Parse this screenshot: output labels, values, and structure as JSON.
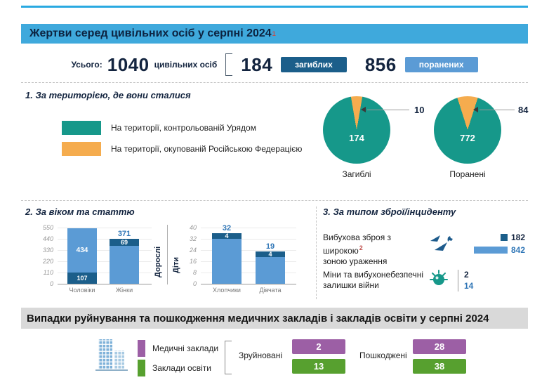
{
  "colors": {
    "header_blue": "#3FA9DC",
    "top_rule_blue": "#29A9E1",
    "killed_dark_blue": "#1B5E8A",
    "injured_light_blue": "#5B9BD5",
    "injured_text_blue": "#2E75B6",
    "government_teal": "#16988A",
    "occupied_orange": "#F5AC4E",
    "medical_purple": "#9C5FA5",
    "education_green": "#57A02F",
    "grey_bar": "#D9D9D9"
  },
  "header": {
    "title": "Жертви серед цивільних осіб у серпні 2024",
    "footnote_mark": "1"
  },
  "summary": {
    "total_label": "Усього:",
    "total_value": "1040",
    "total_unit": "цивільних осіб",
    "killed_value": "184",
    "killed_badge": "загиблих",
    "injured_value": "856",
    "injured_badge": "поранених"
  },
  "section_territory": {
    "title": "1. За територією, де вони сталися",
    "legend": [
      {
        "label": "На території, контрольованій Урядом",
        "color": "#16988A"
      },
      {
        "label": "На території, окупованій Російською Федерацією",
        "color": "#F5AC4E"
      }
    ]
  },
  "section_age": {
    "title": "2. За віком та статтю"
  },
  "section_weapons": {
    "title": "3. За типом зброї/інциденту",
    "rows": [
      {
        "line1": "Вибухова зброя з широкою",
        "line2": "зоною ураження",
        "footnote_mark": "2"
      },
      {
        "line1": "Міни та вибухонебезпечні",
        "line2": "залишки війни",
        "footnote_mark": ""
      }
    ]
  },
  "facilities": {
    "title": "Випадки руйнування та пошкодження медичних закладів і закладів освіти у серпні 2024",
    "legend": [
      {
        "label": "Медичні заклади",
        "color": "#9C5FA5"
      },
      {
        "label": "Заклади освіти",
        "color": "#57A02F"
      }
    ],
    "destroyed_label": "Зруйновані",
    "damaged_label": "Пошкоджені"
  },
  "chart_data": [
    {
      "type": "pie",
      "title": "Загиблі",
      "labels": [
        "На території, контрольованій Урядом",
        "На території, окупованій Російською Федерацією"
      ],
      "values": [
        174,
        10
      ],
      "colors": [
        "#16988A",
        "#F5AC4E"
      ]
    },
    {
      "type": "pie",
      "title": "Поранені",
      "labels": [
        "На території, контрольованій Урядом",
        "На території, окупованій Російською Федерацією"
      ],
      "values": [
        772,
        84
      ],
      "colors": [
        "#16988A",
        "#F5AC4E"
      ]
    },
    {
      "type": "bar",
      "group": "Дорослі",
      "stacked": true,
      "categories": [
        "Чоловіки",
        "Жінки"
      ],
      "yticks": [
        "550",
        "440",
        "330",
        "220",
        "110",
        "0"
      ],
      "ylim": [
        0,
        550
      ],
      "series": [
        {
          "name": "загиблі",
          "color": "#1B5E8A",
          "values": [
            107,
            69
          ]
        },
        {
          "name": "поранені",
          "color": "#5B9BD5",
          "values": [
            434,
            371
          ]
        }
      ]
    },
    {
      "type": "bar",
      "group": "Діти",
      "stacked": true,
      "categories": [
        "Хлопчики",
        "Дівчата"
      ],
      "yticks": [
        "40",
        "32",
        "24",
        "16",
        "8",
        "0"
      ],
      "ylim": [
        0,
        40
      ],
      "series": [
        {
          "name": "загиблі",
          "color": "#1B5E8A",
          "values": [
            4,
            4
          ]
        },
        {
          "name": "поранені",
          "color": "#5B9BD5",
          "values": [
            32,
            19
          ]
        }
      ]
    },
    {
      "type": "bar",
      "title": "За типом зброї/інциденту",
      "categories": [
        "Вибухова зброя з широкою зоною ураження",
        "Міни та вибухонебезпечні залишки війни"
      ],
      "series": [
        {
          "name": "загиблі",
          "color": "#1B5E8A",
          "values": [
            182,
            2
          ]
        },
        {
          "name": "поранені",
          "color": "#5B9BD5",
          "values": [
            842,
            14
          ]
        }
      ]
    },
    {
      "type": "table",
      "title": "Випадки руйнування та пошкодження медичних закладів і закладів освіти у серпні 2024",
      "columns": [
        "Зруйновані",
        "Пошкоджені"
      ],
      "rows": [
        {
          "label": "Медичні заклади",
          "color": "#9C5FA5",
          "values": [
            2,
            28
          ]
        },
        {
          "label": "Заклади освіти",
          "color": "#57A02F",
          "values": [
            13,
            38
          ]
        }
      ]
    }
  ]
}
